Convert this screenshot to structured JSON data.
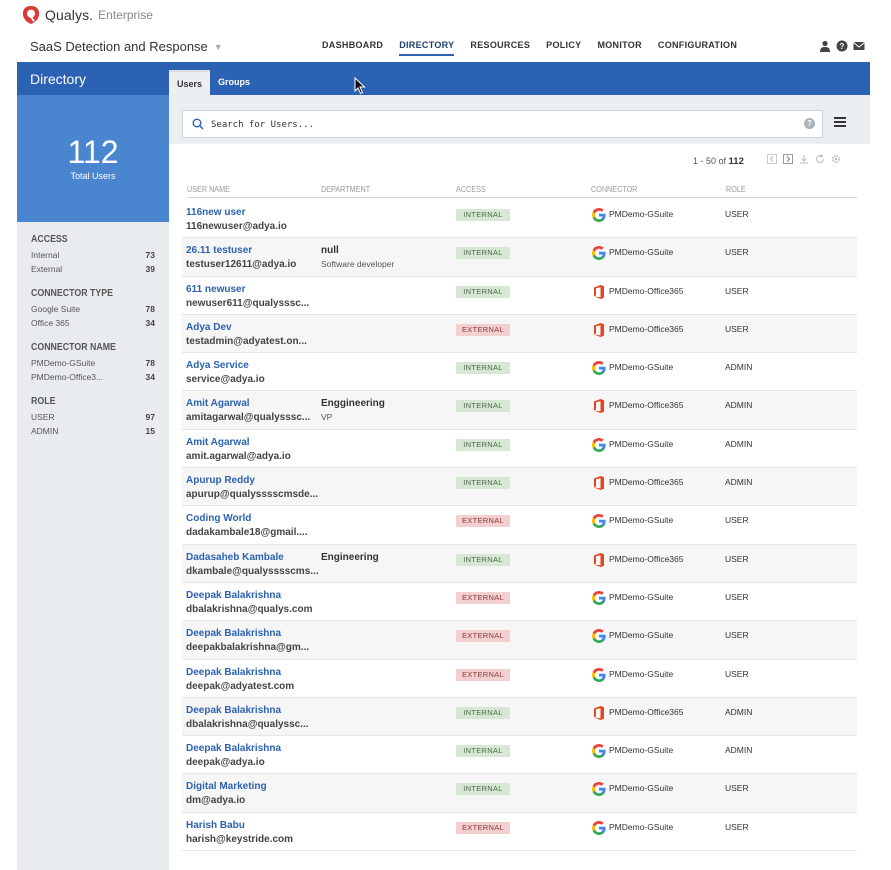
{
  "header": {
    "brand": "Qualys.",
    "edition": "Enterprise",
    "app_name": "SaaS Detection and Response",
    "nav": [
      {
        "label": "DASHBOARD"
      },
      {
        "label": "DIRECTORY"
      },
      {
        "label": "RESOURCES"
      },
      {
        "label": "POLICY"
      },
      {
        "label": "MONITOR"
      },
      {
        "label": "CONFIGURATION"
      }
    ],
    "active_nav": "DIRECTORY",
    "icons": [
      "user-icon",
      "help-icon",
      "mail-icon"
    ]
  },
  "page": {
    "title": "Directory",
    "tabs": [
      {
        "label": "Users"
      },
      {
        "label": "Groups"
      }
    ],
    "accent": "#2c62b3"
  },
  "sidebar": {
    "total": "112",
    "total_label": "Total Users",
    "facets": [
      {
        "title": "ACCESS",
        "rows": [
          {
            "label": "Internal",
            "count": "73"
          },
          {
            "label": "External",
            "count": "39"
          }
        ]
      },
      {
        "title": "CONNECTOR TYPE",
        "rows": [
          {
            "label": "Google Suite",
            "count": "78"
          },
          {
            "label": "Office 365",
            "count": "34"
          }
        ]
      },
      {
        "title": "CONNECTOR NAME",
        "rows": [
          {
            "label": "PMDemo-GSuite",
            "count": "78"
          },
          {
            "label": "PMDemo-Office3...",
            "count": "34"
          }
        ]
      },
      {
        "title": "ROLE",
        "rows": [
          {
            "label": "USER",
            "count": "97"
          },
          {
            "label": "ADMIN",
            "count": "15"
          }
        ]
      }
    ]
  },
  "search": {
    "placeholder": "Search for Users..."
  },
  "pager": {
    "range": "1 - 50 of",
    "total": "112"
  },
  "table": {
    "columns": [
      "USER NAME",
      "DEPARTMENT",
      "ACCESS",
      "CONNECTOR",
      "ROLE"
    ],
    "rows": [
      {
        "name": "116new user",
        "email": "116newuser@adya.io",
        "dept": "",
        "dept_sub": "",
        "access": "INTERNAL",
        "connector_type": "google",
        "connector": "PMDemo-GSuite",
        "role": "USER"
      },
      {
        "name": "26.11 testuser",
        "email": "testuser12611@adya.io",
        "dept": "null",
        "dept_sub": "Software developer",
        "access": "INTERNAL",
        "connector_type": "google",
        "connector": "PMDemo-GSuite",
        "role": "USER"
      },
      {
        "name": "611 newuser",
        "email": "newuser611@qualysssc...",
        "dept": "",
        "dept_sub": "",
        "access": "INTERNAL",
        "connector_type": "office",
        "connector": "PMDemo-Office365",
        "role": "USER"
      },
      {
        "name": "Adya Dev",
        "email": "testadmin@adyatest.on...",
        "dept": "",
        "dept_sub": "",
        "access": "EXTERNAL",
        "connector_type": "office",
        "connector": "PMDemo-Office365",
        "role": "USER"
      },
      {
        "name": "Adya Service",
        "email": "service@adya.io",
        "dept": "",
        "dept_sub": "",
        "access": "INTERNAL",
        "connector_type": "google",
        "connector": "PMDemo-GSuite",
        "role": "ADMIN"
      },
      {
        "name": "Amit Agarwal",
        "email": "amitagarwal@qualysssc...",
        "dept": "Enggineering",
        "dept_sub": "VP",
        "access": "INTERNAL",
        "connector_type": "office",
        "connector": "PMDemo-Office365",
        "role": "ADMIN"
      },
      {
        "name": "Amit Agarwal",
        "email": "amit.agarwal@adya.io",
        "dept": "",
        "dept_sub": "",
        "access": "INTERNAL",
        "connector_type": "google",
        "connector": "PMDemo-GSuite",
        "role": "ADMIN"
      },
      {
        "name": "Apurup Reddy",
        "email": "apurup@qualysssscmsde...",
        "dept": "",
        "dept_sub": "",
        "access": "INTERNAL",
        "connector_type": "office",
        "connector": "PMDemo-Office365",
        "role": "ADMIN"
      },
      {
        "name": "Coding World",
        "email": "dadakambale18@gmail....",
        "dept": "",
        "dept_sub": "",
        "access": "EXTERNAL",
        "connector_type": "google",
        "connector": "PMDemo-GSuite",
        "role": "USER"
      },
      {
        "name": "Dadasaheb Kambale",
        "email": "dkambale@qualysssscms...",
        "dept": "Engineering",
        "dept_sub": "",
        "access": "INTERNAL",
        "connector_type": "office",
        "connector": "PMDemo-Office365",
        "role": "USER"
      },
      {
        "name": "Deepak Balakrishna",
        "email": "dbalakrishna@qualys.com",
        "dept": "",
        "dept_sub": "",
        "access": "EXTERNAL",
        "connector_type": "google",
        "connector": "PMDemo-GSuite",
        "role": "USER"
      },
      {
        "name": "Deepak Balakrishna",
        "email": "deepakbalakrishna@gm...",
        "dept": "",
        "dept_sub": "",
        "access": "EXTERNAL",
        "connector_type": "google",
        "connector": "PMDemo-GSuite",
        "role": "USER"
      },
      {
        "name": "Deepak Balakrishna",
        "email": "deepak@adyatest.com",
        "dept": "",
        "dept_sub": "",
        "access": "EXTERNAL",
        "connector_type": "google",
        "connector": "PMDemo-GSuite",
        "role": "USER"
      },
      {
        "name": "Deepak Balakrishna",
        "email": "dbalakrishna@qualyssc...",
        "dept": "",
        "dept_sub": "",
        "access": "INTERNAL",
        "connector_type": "office",
        "connector": "PMDemo-Office365",
        "role": "ADMIN"
      },
      {
        "name": "Deepak Balakrishna",
        "email": "deepak@adya.io",
        "dept": "",
        "dept_sub": "",
        "access": "INTERNAL",
        "connector_type": "google",
        "connector": "PMDemo-GSuite",
        "role": "ADMIN"
      },
      {
        "name": "Digital Marketing",
        "email": "dm@adya.io",
        "dept": "",
        "dept_sub": "",
        "access": "INTERNAL",
        "connector_type": "google",
        "connector": "PMDemo-GSuite",
        "role": "USER"
      },
      {
        "name": "Harish Babu",
        "email": "harish@keystride.com",
        "dept": "",
        "dept_sub": "",
        "access": "EXTERNAL",
        "connector_type": "google",
        "connector": "PMDemo-GSuite",
        "role": "USER"
      }
    ]
  }
}
